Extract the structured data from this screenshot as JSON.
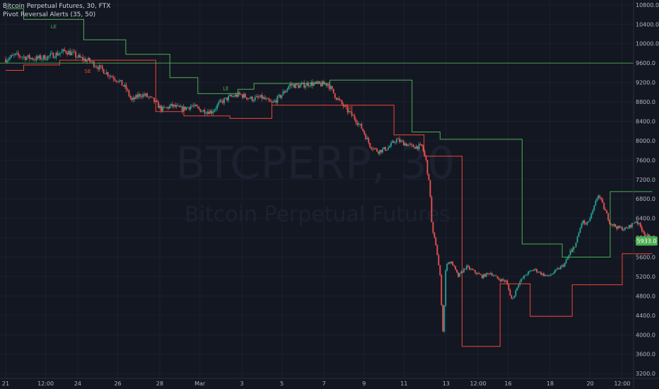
{
  "legend": {
    "title": "Bitcoin Perpetual Futures, 30, FTX",
    "indicator": "Pivot Reversal Alerts (35, 50)"
  },
  "watermark": {
    "symbol": "BTCPERP, 30",
    "description": "Bitcoin Perpetual Futures"
  },
  "colors": {
    "background": "#131722",
    "up": "#26a69a",
    "down": "#ef5350",
    "pivot_high": "#4caf50",
    "pivot_low": "#f44336",
    "axis_text": "#b2b5be",
    "price_label_bg": "#4caf50"
  },
  "chart_data": {
    "type": "candlestick",
    "symbol": "BTCPERP",
    "interval": "30",
    "exchange": "FTX",
    "ylim": [
      3100,
      10900
    ],
    "xlim": [
      0,
      32.3
    ],
    "y_ticks": [
      3200.0,
      3600.0,
      4000.0,
      4400.0,
      4800.0,
      5200.0,
      5600.0,
      6000.0,
      6400.0,
      6800.0,
      7200.0,
      7600.0,
      8000.0,
      8400.0,
      8800.0,
      9200.0,
      9600.0,
      10000.0,
      10400.0,
      10800.0
    ],
    "x_ticks": [
      {
        "x": 0.0,
        "label": "21"
      },
      {
        "x": 2.0,
        "label": "12:00"
      },
      {
        "x": 3.6,
        "label": "24"
      },
      {
        "x": 5.6,
        "label": "26"
      },
      {
        "x": 7.7,
        "label": "28"
      },
      {
        "x": 9.7,
        "label": "Mar"
      },
      {
        "x": 11.8,
        "label": "3"
      },
      {
        "x": 13.8,
        "label": "5"
      },
      {
        "x": 15.9,
        "label": "7"
      },
      {
        "x": 17.9,
        "label": "9"
      },
      {
        "x": 19.9,
        "label": "11"
      },
      {
        "x": 22.0,
        "label": "13"
      },
      {
        "x": 23.6,
        "label": "12:00"
      },
      {
        "x": 25.1,
        "label": "16"
      },
      {
        "x": 27.2,
        "label": "18"
      },
      {
        "x": 29.2,
        "label": "20"
      },
      {
        "x": 30.8,
        "label": "12:00"
      }
    ],
    "price_path": [
      [
        0.0,
        9680
      ],
      [
        0.5,
        9760
      ],
      [
        1.0,
        9720
      ],
      [
        1.5,
        9690
      ],
      [
        2.0,
        9720
      ],
      [
        2.5,
        9780
      ],
      [
        3.0,
        9850
      ],
      [
        3.4,
        9780
      ],
      [
        3.7,
        9700
      ],
      [
        4.2,
        9640
      ],
      [
        4.7,
        9500
      ],
      [
        5.2,
        9350
      ],
      [
        5.6,
        9250
      ],
      [
        6.0,
        9080
      ],
      [
        6.3,
        8820
      ],
      [
        6.7,
        8950
      ],
      [
        7.0,
        8930
      ],
      [
        7.4,
        8820
      ],
      [
        7.8,
        8640
      ],
      [
        8.3,
        8720
      ],
      [
        8.8,
        8650
      ],
      [
        9.3,
        8720
      ],
      [
        9.8,
        8620
      ],
      [
        10.3,
        8600
      ],
      [
        10.7,
        8780
      ],
      [
        11.2,
        8900
      ],
      [
        11.7,
        8950
      ],
      [
        12.3,
        8860
      ],
      [
        12.8,
        8890
      ],
      [
        13.3,
        8760
      ],
      [
        13.8,
        8950
      ],
      [
        14.2,
        9150
      ],
      [
        14.7,
        9130
      ],
      [
        15.2,
        9180
      ],
      [
        15.7,
        9160
      ],
      [
        16.1,
        9170
      ],
      [
        16.5,
        8900
      ],
      [
        17.0,
        8650
      ],
      [
        17.4,
        8480
      ],
      [
        17.8,
        8250
      ],
      [
        18.2,
        7900
      ],
      [
        18.6,
        7780
      ],
      [
        19.1,
        7850
      ],
      [
        19.5,
        8020
      ],
      [
        19.9,
        7950
      ],
      [
        20.3,
        7880
      ],
      [
        20.8,
        7880
      ],
      [
        21.0,
        7580
      ],
      [
        21.2,
        6950
      ],
      [
        21.3,
        6150
      ],
      [
        21.5,
        5850
      ],
      [
        21.7,
        5200
      ],
      [
        21.85,
        4000
      ],
      [
        22.0,
        5500
      ],
      [
        22.3,
        5480
      ],
      [
        22.6,
        5200
      ],
      [
        23.0,
        5400
      ],
      [
        23.4,
        5300
      ],
      [
        23.8,
        5200
      ],
      [
        24.2,
        5280
      ],
      [
        24.6,
        5150
      ],
      [
        25.0,
        5100
      ],
      [
        25.3,
        4700
      ],
      [
        25.6,
        5050
      ],
      [
        26.0,
        5250
      ],
      [
        26.4,
        5350
      ],
      [
        26.8,
        5250
      ],
      [
        27.1,
        5200
      ],
      [
        27.5,
        5320
      ],
      [
        27.9,
        5450
      ],
      [
        28.2,
        5680
      ],
      [
        28.5,
        5900
      ],
      [
        28.8,
        6350
      ],
      [
        29.0,
        6250
      ],
      [
        29.3,
        6500
      ],
      [
        29.6,
        6900
      ],
      [
        29.9,
        6600
      ],
      [
        30.2,
        6300
      ],
      [
        30.6,
        6200
      ],
      [
        31.0,
        6180
      ],
      [
        31.5,
        6350
      ],
      [
        31.9,
        6100
      ],
      [
        32.3,
        5940
      ]
    ],
    "pivot_high_line": [
      [
        0.0,
        10720
      ],
      [
        0.9,
        10720
      ],
      [
        0.9,
        10500
      ],
      [
        3.9,
        10500
      ],
      [
        3.9,
        10080
      ],
      [
        6.0,
        10080
      ],
      [
        6.0,
        9780
      ],
      [
        8.2,
        9780
      ],
      [
        8.2,
        9300
      ],
      [
        9.6,
        9300
      ],
      [
        9.6,
        8970
      ],
      [
        11.6,
        8970
      ],
      [
        11.6,
        9060
      ],
      [
        12.4,
        9060
      ],
      [
        12.4,
        9180
      ],
      [
        16.2,
        9180
      ],
      [
        16.2,
        9250
      ],
      [
        20.3,
        9250
      ],
      [
        20.3,
        8180
      ],
      [
        21.7,
        8180
      ],
      [
        21.7,
        8030
      ],
      [
        25.8,
        8030
      ],
      [
        25.8,
        5870
      ],
      [
        27.8,
        5870
      ],
      [
        27.8,
        5600
      ],
      [
        30.2,
        5600
      ],
      [
        30.2,
        6950
      ],
      [
        32.3,
        6950
      ]
    ],
    "pivot_low_line": [
      [
        0.0,
        9450
      ],
      [
        0.9,
        9450
      ],
      [
        0.9,
        9560
      ],
      [
        2.7,
        9560
      ],
      [
        2.7,
        9660
      ],
      [
        7.5,
        9660
      ],
      [
        7.5,
        8600
      ],
      [
        8.9,
        8600
      ],
      [
        8.9,
        8510
      ],
      [
        11.2,
        8510
      ],
      [
        11.2,
        8460
      ],
      [
        13.3,
        8460
      ],
      [
        13.3,
        8730
      ],
      [
        19.4,
        8730
      ],
      [
        19.4,
        8120
      ],
      [
        20.9,
        8120
      ],
      [
        20.9,
        7680
      ],
      [
        22.8,
        7680
      ],
      [
        22.8,
        3760
      ],
      [
        24.7,
        3760
      ],
      [
        24.7,
        5050
      ],
      [
        26.2,
        5050
      ],
      [
        26.2,
        4380
      ],
      [
        28.3,
        4380
      ],
      [
        28.3,
        5030
      ],
      [
        30.8,
        5030
      ],
      [
        30.8,
        5670
      ],
      [
        32.3,
        5670
      ]
    ],
    "horizontal_level": 9600,
    "last_price": 5933.0,
    "last_price_label": "5933.0",
    "signals": [
      {
        "label": "LE",
        "x": 2.4,
        "y": 10320,
        "kind": "long"
      },
      {
        "label": "SE",
        "x": 4.1,
        "y": 9400,
        "kind": "short"
      },
      {
        "label": "LE",
        "x": 11.0,
        "y": 9040,
        "kind": "long"
      },
      {
        "label": "SE",
        "x": 17.2,
        "y": 8640,
        "kind": "short"
      },
      {
        "label": "LE",
        "x": 28.3,
        "y": 5700,
        "kind": "long"
      }
    ]
  }
}
